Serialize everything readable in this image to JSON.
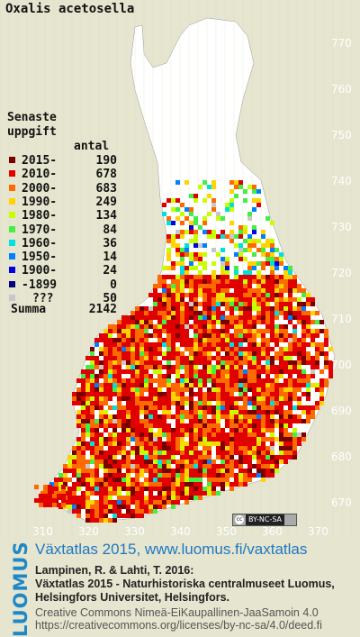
{
  "species": "Oxalis acetosella",
  "legend": {
    "heading_line1": "Senaste",
    "heading_line2": "uppgift",
    "count_header": "antal",
    "items": [
      {
        "label": "2015-",
        "count": "190",
        "color": "#7a0000"
      },
      {
        "label": "2010-",
        "count": "678",
        "color": "#e00000"
      },
      {
        "label": "2000-",
        "count": "683",
        "color": "#ff6a00"
      },
      {
        "label": "1990-",
        "count": "249",
        "color": "#ffd400"
      },
      {
        "label": "1980-",
        "count": "134",
        "color": "#c8ff00"
      },
      {
        "label": "1970-",
        "count": "84",
        "color": "#44ee44"
      },
      {
        "label": "1960-",
        "count": "36",
        "color": "#00e0e0"
      },
      {
        "label": "1950-",
        "count": "14",
        "color": "#0080ff"
      },
      {
        "label": "1900-",
        "count": "24",
        "color": "#0000e0"
      },
      {
        "label": "-1899",
        "count": "0",
        "color": "#000080"
      },
      {
        "label": "???",
        "count": "50",
        "color": "#c8c8c8"
      }
    ],
    "total_label": "Summa",
    "total_count": "2142"
  },
  "y_ticks": [
    "770",
    "760",
    "750",
    "740",
    "730",
    "720",
    "710",
    "700",
    "690",
    "680",
    "670"
  ],
  "x_ticks": [
    "310",
    "320",
    "330",
    "340",
    "350",
    "360",
    "370"
  ],
  "cc_badge": {
    "symbol": "cc",
    "text": "BY-NC-SA"
  },
  "footer": {
    "brand": "LUOMUS",
    "title": "Växtatlas 2015, www.luomus.fi/vaxtatlas",
    "citation_line1": "Lampinen, R. & Lahti, T. 2016:",
    "citation_line2": "Växtatlas 2015 - Naturhistoriska centralmuseet Luomus,",
    "citation_line3": "Helsingfors Universitet, Helsingfors.",
    "license_line1": "Creative Commons Nimeä-EiKaupallinen-JaaSamoin 4.0",
    "license_line2": "https://creativecommons.org/licenses/by-nc-sa/4.0/deed.fi"
  },
  "colors": {
    "background": "#e6e5cf",
    "land": "#ffffff",
    "brand_blue": "#1e88c7"
  }
}
